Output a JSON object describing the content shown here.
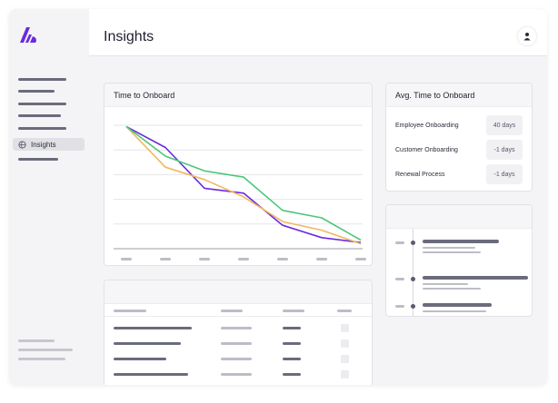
{
  "sidebar": {
    "active_item": {
      "label": "Insights",
      "icon": "globe-icon"
    }
  },
  "header": {
    "title": "Insights",
    "avatar_icon": "user-icon"
  },
  "time_to_onboard": {
    "title": "Time to Onboard",
    "chart_data": {
      "type": "line",
      "title": "Time to Onboard",
      "x_ticks": 7,
      "y_range": [
        0,
        5
      ],
      "grid": true,
      "series": [
        {
          "color": "#6a2ae0",
          "values": [
            4.95,
            4.1,
            2.45,
            2.25,
            0.95,
            0.45,
            0.25
          ]
        },
        {
          "color": "#f0b860",
          "values": [
            4.95,
            3.3,
            2.8,
            2.1,
            1.1,
            0.75,
            0.2
          ]
        },
        {
          "color": "#4cc77a",
          "values": [
            4.95,
            3.75,
            3.15,
            2.9,
            1.55,
            1.25,
            0.35
          ]
        }
      ]
    }
  },
  "avg_time": {
    "title": "Avg. Time to Onboard",
    "rows": [
      {
        "name": "Employee Onboarding",
        "value": "40 days"
      },
      {
        "name": "Customer Onboarding",
        "value": "-1 days"
      },
      {
        "name": "Renewal Process",
        "value": "-1 days"
      }
    ]
  }
}
